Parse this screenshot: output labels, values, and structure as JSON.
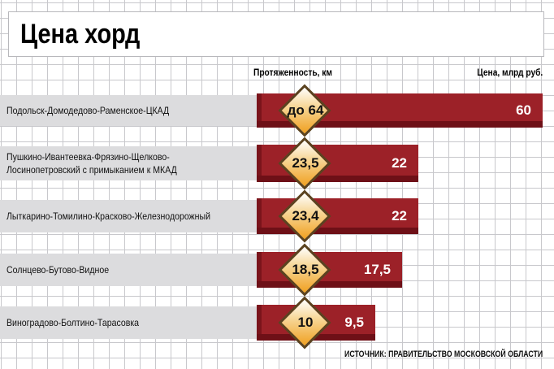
{
  "title": "Цена хорд",
  "chart_data": {
    "type": "bar",
    "title": "Цена хорд",
    "length_label": "Протяженность, км",
    "price_label": "Цена, млрд руб.",
    "categories": [
      "Подольск-Домодедово-Раменское-ЦКАД",
      "Пушкино-Ивантеевка-Фрязино-Щелково-Лосинопетровский с примыканием к МКАД",
      "Лыткарино-Томилино-Красково-Железнодорожный",
      "Солнцево-Бутово-Видное",
      "Виноградово-Болтино-Тарасовка"
    ],
    "lengths": [
      "до 64",
      "23,5",
      "23,4",
      "18,5",
      "10"
    ],
    "prices_label": [
      "60",
      "22",
      "22",
      "17,5",
      "9,5"
    ],
    "prices": [
      60,
      22,
      22,
      17.5,
      9.5
    ]
  },
  "source": "ИСТОЧНИК: ПРАВИТЕЛЬСТВО МОСКОВСКОЙ ОБЛАСТИ",
  "colors": {
    "bar": "#9c2128",
    "sign": "#f0a020"
  }
}
